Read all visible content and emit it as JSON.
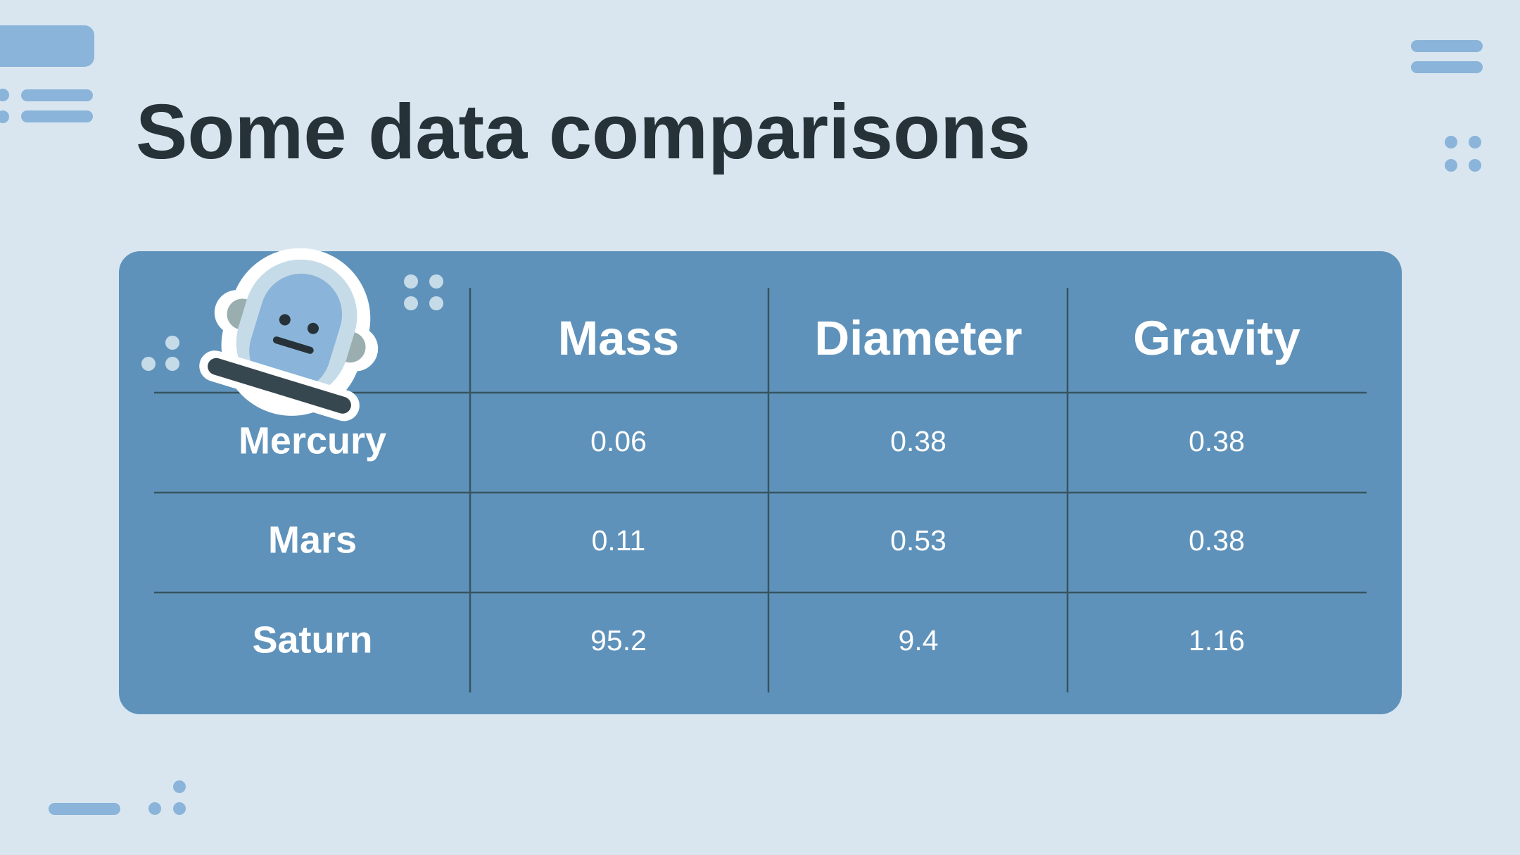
{
  "title": "Some data comparisons",
  "table": {
    "header": [
      "Mass",
      "Diameter",
      "Gravity"
    ],
    "rows": [
      [
        "Mercury",
        "0.06",
        "0.38",
        "0.38"
      ],
      [
        "Mars",
        "0.11",
        "0.53",
        "0.38"
      ],
      [
        "Saturn",
        "95.2",
        "9.4",
        "1.16"
      ]
    ]
  }
}
